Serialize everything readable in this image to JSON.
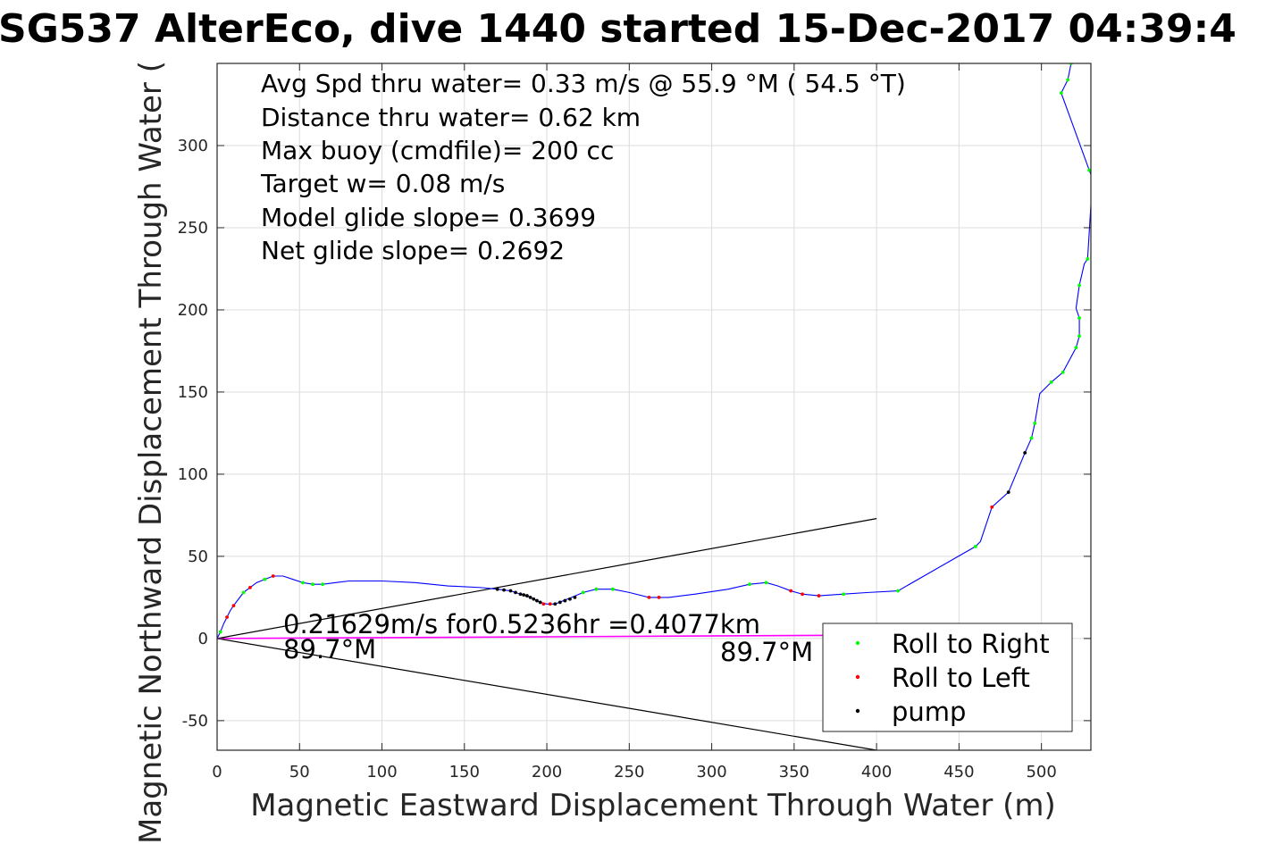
{
  "chart_data": {
    "type": "scatter",
    "title": "SG537 AlterEco, dive 1440 started 15-Dec-2017 04:39:4",
    "xlabel": "Magnetic Eastward Displacement Through Water (m)",
    "ylabel": "Magnetic Northward Displacement Through Water (",
    "xlim": [
      0,
      530
    ],
    "ylim": [
      -68,
      350
    ],
    "xticks": [
      0,
      50,
      100,
      150,
      200,
      250,
      300,
      350,
      400,
      450,
      500
    ],
    "yticks": [
      -50,
      0,
      50,
      100,
      150,
      200,
      250,
      300
    ],
    "grid": true,
    "stats": [
      "Avg Spd thru water=  0.33 m/s @  55.9 °M ( 54.5 °T)",
      "Distance thru water=  0.62 km",
      "Max buoy (cmdfile)= 200 cc",
      "Target w= 0.08 m/s",
      "Model glide slope= 0.3699",
      "Net glide slope= 0.2692"
    ],
    "current_annotation": "0.21629m/s for0.5236hr =0.4077km",
    "heading_start_label": "89.7°M",
    "heading_end_label": "89.7°M",
    "legend": {
      "placement": "bottom-right",
      "entries": [
        {
          "label": "Roll to Right",
          "color": "#00ff00"
        },
        {
          "label": "Roll to Left",
          "color": "#ff0000"
        },
        {
          "label": "pump",
          "color": "#000000"
        }
      ]
    },
    "colors": {
      "track": "#0000ff",
      "current": "#ff00ff",
      "cone": "#000000",
      "grid": "#dcdcdc"
    },
    "track": [
      [
        0,
        0
      ],
      [
        2,
        4
      ],
      [
        4,
        9
      ],
      [
        6,
        13
      ],
      [
        8,
        17
      ],
      [
        10,
        20
      ],
      [
        13,
        24
      ],
      [
        16,
        28
      ],
      [
        20,
        31
      ],
      [
        24,
        34
      ],
      [
        29,
        36
      ],
      [
        34,
        38
      ],
      [
        40,
        38
      ],
      [
        46,
        36
      ],
      [
        52,
        34
      ],
      [
        58,
        33
      ],
      [
        64,
        33
      ],
      [
        72,
        34
      ],
      [
        80,
        35
      ],
      [
        100,
        35
      ],
      [
        120,
        34
      ],
      [
        140,
        32
      ],
      [
        160,
        31
      ],
      [
        170,
        30
      ],
      [
        178,
        29
      ],
      [
        184,
        27
      ],
      [
        188,
        26
      ],
      [
        192,
        24
      ],
      [
        196,
        22
      ],
      [
        200,
        21
      ],
      [
        205,
        21
      ],
      [
        210,
        23
      ],
      [
        215,
        25
      ],
      [
        222,
        28
      ],
      [
        230,
        30
      ],
      [
        240,
        30
      ],
      [
        250,
        28
      ],
      [
        262,
        25
      ],
      [
        274,
        25
      ],
      [
        290,
        27
      ],
      [
        310,
        30
      ],
      [
        323,
        33
      ],
      [
        333,
        34
      ],
      [
        340,
        32
      ],
      [
        348,
        29
      ],
      [
        355,
        27
      ],
      [
        365,
        26
      ],
      [
        380,
        27
      ],
      [
        395,
        28
      ],
      [
        413,
        29
      ],
      [
        460,
        56
      ],
      [
        463,
        59
      ],
      [
        470,
        80
      ],
      [
        480,
        89
      ],
      [
        490,
        113
      ],
      [
        494,
        122
      ],
      [
        496,
        131
      ],
      [
        499,
        149
      ],
      [
        506,
        156
      ],
      [
        513,
        162
      ],
      [
        521,
        177
      ],
      [
        523,
        184
      ],
      [
        523,
        195
      ],
      [
        521,
        201
      ],
      [
        523,
        215
      ],
      [
        526,
        228
      ],
      [
        528,
        231
      ],
      [
        531,
        280
      ],
      [
        529,
        285
      ],
      [
        512,
        332
      ],
      [
        516,
        340
      ],
      [
        518,
        350
      ]
    ],
    "roll_right": [
      [
        2,
        4
      ],
      [
        16,
        28
      ],
      [
        29,
        36
      ],
      [
        52,
        34
      ],
      [
        58,
        33
      ],
      [
        64,
        33
      ],
      [
        222,
        28
      ],
      [
        230,
        30
      ],
      [
        240,
        30
      ],
      [
        323,
        33
      ],
      [
        333,
        34
      ],
      [
        380,
        27
      ],
      [
        413,
        29
      ],
      [
        460,
        56
      ],
      [
        494,
        122
      ],
      [
        496,
        131
      ],
      [
        506,
        156
      ],
      [
        513,
        162
      ],
      [
        521,
        177
      ],
      [
        523,
        184
      ],
      [
        523,
        195
      ],
      [
        523,
        215
      ],
      [
        528,
        231
      ],
      [
        531,
        280
      ],
      [
        529,
        285
      ],
      [
        512,
        332
      ],
      [
        516,
        340
      ],
      [
        518,
        350
      ]
    ],
    "roll_left": [
      [
        6,
        13
      ],
      [
        10,
        20
      ],
      [
        20,
        31
      ],
      [
        34,
        38
      ],
      [
        198,
        21
      ],
      [
        202,
        21
      ],
      [
        262,
        25
      ],
      [
        268,
        25
      ],
      [
        348,
        29
      ],
      [
        355,
        27
      ],
      [
        365,
        26
      ],
      [
        470,
        80
      ]
    ],
    "pump": [
      [
        170,
        30
      ],
      [
        174,
        29.5
      ],
      [
        178,
        29
      ],
      [
        181,
        28
      ],
      [
        184,
        27
      ],
      [
        186,
        26.5
      ],
      [
        188,
        26
      ],
      [
        190,
        25
      ],
      [
        192,
        24
      ],
      [
        194,
        23
      ],
      [
        196,
        22
      ],
      [
        205,
        21
      ],
      [
        208,
        22
      ],
      [
        211,
        23
      ],
      [
        214,
        24
      ],
      [
        217,
        25
      ],
      [
        480,
        89
      ],
      [
        490,
        113
      ]
    ],
    "current_vector": {
      "start": [
        0,
        0
      ],
      "end": [
        407.7,
        2.1
      ]
    },
    "heading_cone": {
      "origin": [
        0,
        0
      ],
      "upper": [
        400,
        73
      ],
      "lower": [
        400,
        -68
      ]
    }
  }
}
